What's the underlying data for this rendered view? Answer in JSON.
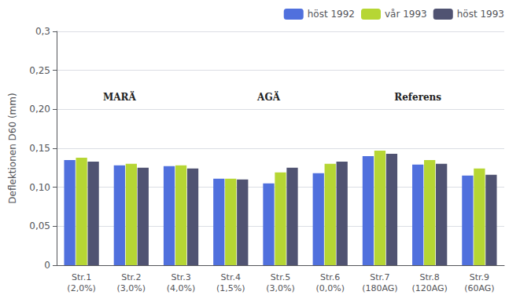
{
  "chart_data": {
    "type": "bar",
    "categories": [
      "Str.1\n(2,0%)",
      "Str.2\n(3,0%)",
      "Str.3\n(4,0%)",
      "Str.4\n(1,5%)",
      "Str.5\n(3,0%)",
      "Str.6\n(0,0%)",
      "Str.7\n(180AG)",
      "Str.8\n(120AG)",
      "Str.9\n(60AG)"
    ],
    "series": [
      {
        "name": "höst 1992",
        "values": [
          0.135,
          0.128,
          0.127,
          0.111,
          0.105,
          0.118,
          0.14,
          0.129,
          0.115
        ]
      },
      {
        "name": "vår 1993",
        "values": [
          0.138,
          0.13,
          0.128,
          0.111,
          0.119,
          0.13,
          0.147,
          0.135,
          0.124
        ]
      },
      {
        "name": "höst 1993",
        "values": [
          0.133,
          0.125,
          0.124,
          0.11,
          0.125,
          0.133,
          0.143,
          0.13,
          0.116
        ]
      }
    ],
    "ylabel": "Deflektionen D60 (mm)",
    "ylim": [
      0,
      0.3
    ],
    "yticks": [
      0,
      {
        "value": 0.05,
        "label": "0,05"
      },
      {
        "value": 0.1,
        "label": "0,10"
      },
      {
        "value": 0.15,
        "label": "0,15"
      },
      {
        "value": 0.2,
        "label": "0,20"
      },
      {
        "value": 0.25,
        "label": "0,25"
      },
      {
        "value": 0.3,
        "label": "0,3"
      }
    ],
    "annotations": [
      {
        "text": "MARÄ",
        "x": "Str.2\n(3,0%)",
        "y": 0.215
      },
      {
        "text": "AGÄ",
        "x": "Str.5\n(3,0%)",
        "y": 0.215
      },
      {
        "text": "Referens",
        "x": "Str.8\n(120AG)",
        "y": 0.215
      }
    ],
    "grid": true,
    "legend": "upper right"
  }
}
